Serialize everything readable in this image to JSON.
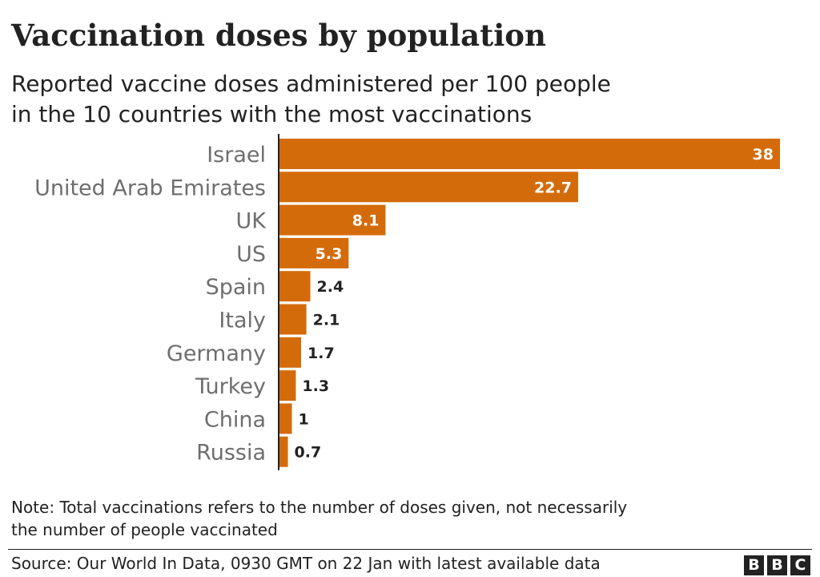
{
  "title": "Vaccination doses by population",
  "subtitle_line1": "Reported vaccine doses administered per 100 people",
  "subtitle_line2": "in the 10 countries with the most vaccinations",
  "chart_data": {
    "type": "bar",
    "orientation": "horizontal",
    "categories": [
      "Israel",
      "United Arab Emirates",
      "UK",
      "US",
      "Spain",
      "Italy",
      "Germany",
      "Turkey",
      "China",
      "Russia"
    ],
    "values": [
      38,
      22.7,
      8.1,
      5.3,
      2.4,
      2.1,
      1.7,
      1.3,
      1,
      0.7
    ],
    "value_labels": [
      "38",
      "22.7",
      "8.1",
      "5.3",
      "2.4",
      "2.1",
      "1.7",
      "1.3",
      "1",
      "0.7"
    ],
    "xlim": [
      0,
      38
    ],
    "grid": false,
    "bar_color": "#d46b0a",
    "axis_color": "#222222"
  },
  "note_line1": "Note: Total vaccinations refers to the number of doses given, not necessarily",
  "note_line2": "the number of people vaccinated",
  "source": "Source: Our World In Data, 0930 GMT on 22 Jan with latest available data",
  "logo": [
    "B",
    "B",
    "C"
  ]
}
